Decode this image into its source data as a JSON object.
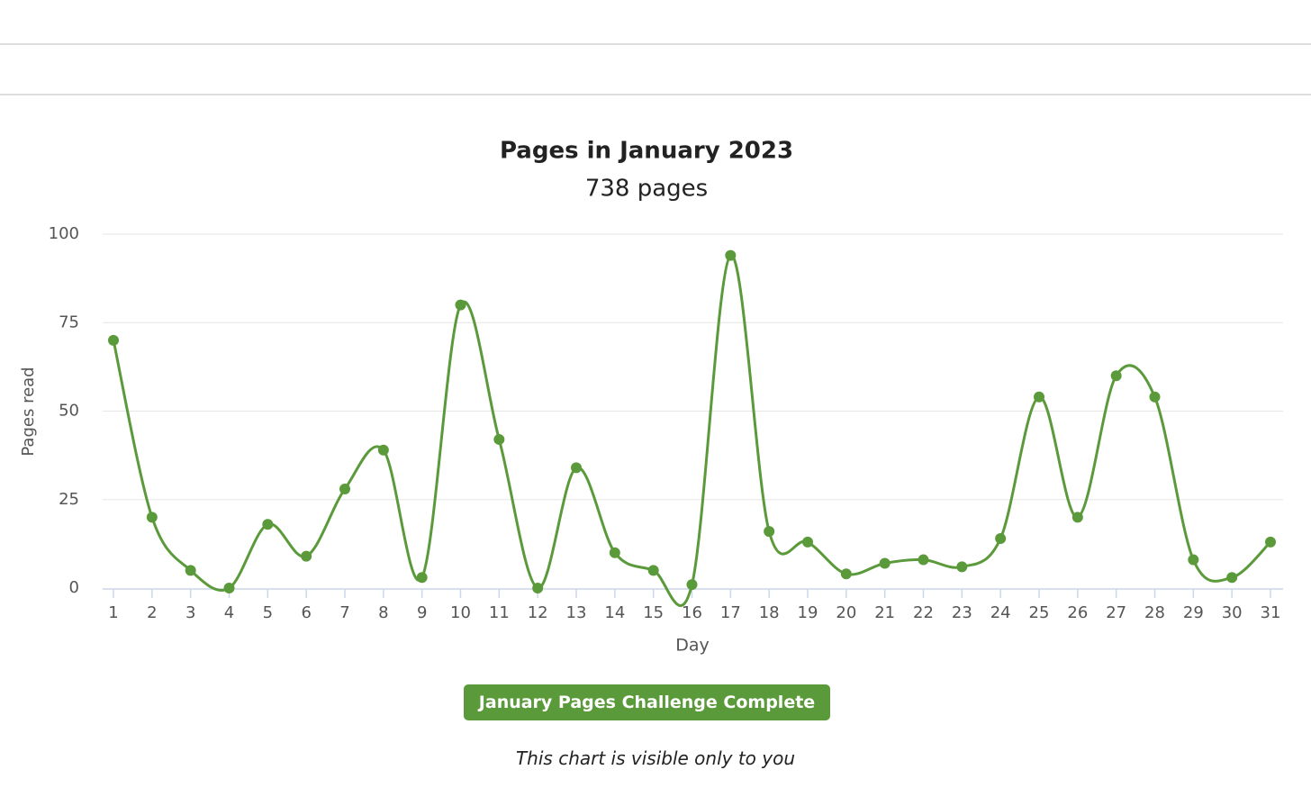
{
  "chart_data": {
    "type": "line",
    "title": "Pages in January 2023",
    "subtitle": "738 pages",
    "y_label": "Pages read",
    "x_label": "Day",
    "categories": [
      "1",
      "2",
      "3",
      "4",
      "5",
      "6",
      "7",
      "8",
      "9",
      "10",
      "11",
      "12",
      "13",
      "14",
      "15",
      "16",
      "17",
      "18",
      "19",
      "20",
      "21",
      "22",
      "23",
      "24",
      "25",
      "26",
      "27",
      "28",
      "29",
      "30",
      "31"
    ],
    "series": [
      {
        "name": "Pages",
        "color": "#5b9a3a",
        "values": [
          70,
          20,
          5,
          0,
          18,
          9,
          28,
          39,
          3,
          80,
          42,
          0,
          34,
          10,
          5,
          1,
          94,
          16,
          13,
          4,
          7,
          8,
          6,
          14,
          54,
          20,
          60,
          54,
          8,
          3,
          13
        ]
      }
    ],
    "ylim": [
      0,
      100
    ],
    "yticks": [
      0,
      25,
      50,
      75,
      100
    ],
    "grid": true,
    "smooth": true
  },
  "button": "January Pages Challenge Complete",
  "note": "This chart is visible only to you"
}
